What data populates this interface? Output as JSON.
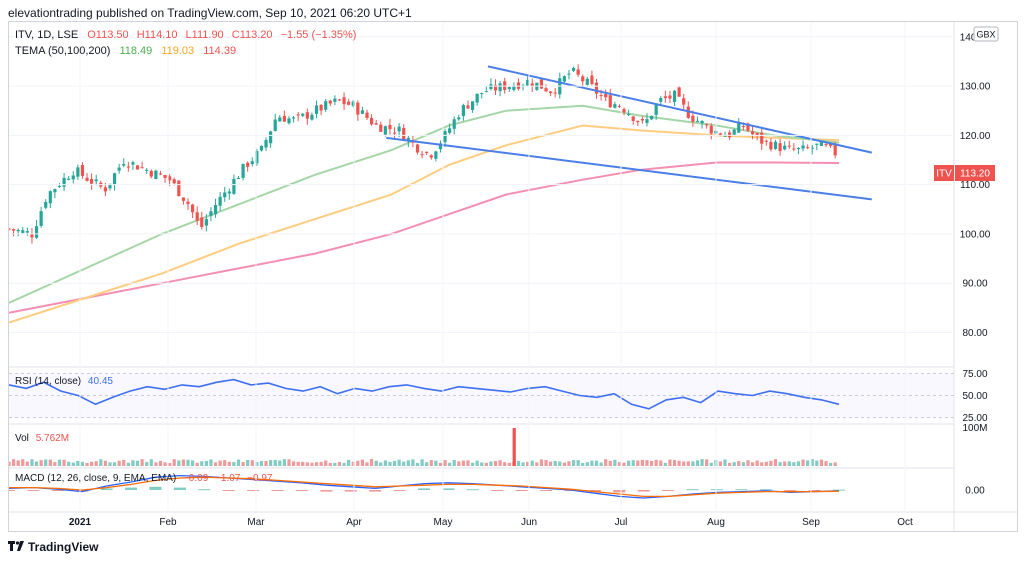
{
  "header": "elevationtrading published on TradingView.com, Sep 10, 2021 06:20 UTC+1",
  "footer": {
    "logo_text": "TradingView"
  },
  "legend": {
    "symbol_line": "ITV, 1D, LSE",
    "open": "O113.50",
    "high": "H114.10",
    "low": "L111.90",
    "close": "C113.20",
    "change": "−1.55 (−1.35%)",
    "tema_label": "TEMA (50,100,200)",
    "tema_values": [
      "118.49",
      "119.03",
      "114.39"
    ]
  },
  "currency": "GBX",
  "last_price_symbol": "ITV",
  "last_price": "113.20",
  "rsi_label": "RSI (14, close)",
  "rsi_value": "40.45",
  "vol_label": "Vol",
  "vol_value": "5.762M",
  "macd_label": "MACD (12, 26, close, 9, EMA, EMA)",
  "macd_values": [
    "−0.09",
    "−1.07",
    "−0.97"
  ],
  "colors": {
    "up": "#26a69a",
    "down": "#ef5350",
    "tema50": "#a5d6a7",
    "tema100": "#ffcc80",
    "tema200": "#f48fb1",
    "trend": "#4a7ee8",
    "rsi": "#3d6ff0",
    "macd": "#2962ff",
    "signal": "#ff6d00"
  },
  "chart_data": {
    "type": "candlestick",
    "price_axis": {
      "ticks": [
        "140.00",
        "130.00",
        "120.00",
        "110.00",
        "100.00",
        "90.00",
        "80.00"
      ],
      "ylim": [
        73,
        143
      ]
    },
    "rsi_axis": {
      "ticks": [
        "75.00",
        "50.00",
        "25.00"
      ]
    },
    "vol_axis": {
      "ticks": [
        "100M"
      ]
    },
    "macd_axis": {
      "ticks": [
        "0.00"
      ]
    },
    "x_labels": [
      "2021",
      "Feb",
      "Mar",
      "Apr",
      "May",
      "Jun",
      "Jul",
      "Aug",
      "Sep",
      "Oct"
    ],
    "close_series": [
      [
        0,
        101
      ],
      [
        6,
        100
      ],
      [
        10,
        108
      ],
      [
        17,
        113
      ],
      [
        25,
        109
      ],
      [
        30,
        115
      ],
      [
        36,
        113
      ],
      [
        42,
        111
      ],
      [
        47,
        106
      ],
      [
        50,
        101
      ],
      [
        54,
        106
      ],
      [
        58,
        110
      ],
      [
        62,
        114
      ],
      [
        66,
        117
      ],
      [
        70,
        124
      ],
      [
        75,
        123
      ],
      [
        80,
        125
      ],
      [
        86,
        127
      ],
      [
        90,
        126
      ],
      [
        96,
        122
      ],
      [
        102,
        121
      ],
      [
        106,
        118
      ],
      [
        110,
        116
      ],
      [
        114,
        120
      ],
      [
        118,
        125
      ],
      [
        124,
        129
      ],
      [
        130,
        130
      ],
      [
        136,
        131
      ],
      [
        142,
        129
      ],
      [
        147,
        133
      ],
      [
        152,
        130
      ],
      [
        156,
        127
      ],
      [
        160,
        126
      ],
      [
        166,
        122
      ],
      [
        170,
        127
      ],
      [
        174,
        128
      ],
      [
        178,
        124
      ],
      [
        184,
        121
      ],
      [
        188,
        120
      ],
      [
        192,
        122
      ],
      [
        196,
        119
      ],
      [
        200,
        118
      ],
      [
        204,
        117
      ],
      [
        208,
        117
      ],
      [
        212,
        118
      ],
      [
        217,
        116
      ]
    ],
    "trendlines": [
      {
        "from": [
          "2021-05-27",
          134
        ],
        "to": [
          "2021-09-21",
          116.5
        ]
      },
      {
        "from": [
          "2021-04-26",
          119.5
        ],
        "to": [
          "2021-09-21",
          107
        ]
      }
    ],
    "tema_series": {
      "50": [
        [
          0,
          86
        ],
        [
          20,
          93
        ],
        [
          40,
          100
        ],
        [
          60,
          106
        ],
        [
          80,
          112
        ],
        [
          100,
          117
        ],
        [
          115,
          122
        ],
        [
          130,
          125
        ],
        [
          150,
          126
        ],
        [
          165,
          124
        ],
        [
          185,
          122
        ],
        [
          200,
          120
        ],
        [
          217,
          118.5
        ]
      ],
      "100": [
        [
          0,
          82
        ],
        [
          20,
          87
        ],
        [
          40,
          92
        ],
        [
          60,
          98
        ],
        [
          80,
          103
        ],
        [
          100,
          108
        ],
        [
          115,
          114
        ],
        [
          130,
          118
        ],
        [
          150,
          122
        ],
        [
          165,
          121
        ],
        [
          185,
          120
        ],
        [
          200,
          119.5
        ],
        [
          217,
          119
        ]
      ],
      "200": [
        [
          0,
          84
        ],
        [
          20,
          87
        ],
        [
          40,
          90
        ],
        [
          60,
          93
        ],
        [
          80,
          96
        ],
        [
          100,
          100
        ],
        [
          115,
          104
        ],
        [
          130,
          108
        ],
        [
          150,
          111
        ],
        [
          165,
          113
        ],
        [
          185,
          114.5
        ],
        [
          200,
          114.5
        ],
        [
          217,
          114.4
        ]
      ]
    },
    "rsi_series": [
      62,
      58,
      65,
      55,
      50,
      40,
      48,
      55,
      60,
      57,
      62,
      60,
      65,
      68,
      62,
      64,
      58,
      55,
      60,
      52,
      58,
      55,
      60,
      62,
      58,
      55,
      60,
      58,
      56,
      54,
      58,
      60,
      55,
      50,
      48,
      52,
      40,
      35,
      45,
      48,
      42,
      55,
      52,
      50,
      55,
      52,
      48,
      45,
      40
    ],
    "volume_spike": {
      "date": "2021-06-04",
      "label": "large volume spike"
    },
    "macd_series": {
      "macd": [
        0.2,
        0.3,
        0.1,
        -0.2,
        0.5,
        1.0,
        1.6,
        1.8,
        1.7,
        1.5,
        1.3,
        1.1,
        0.9,
        0.6,
        0.4,
        0.2,
        0.5,
        0.8,
        0.9,
        0.8,
        0.6,
        0.4,
        0.2,
        0.0,
        -0.4,
        -0.8,
        -1.0,
        -0.8,
        -0.5,
        -0.3,
        -0.2,
        -0.1,
        -0.3,
        -0.2,
        -0.1
      ],
      "signal": [
        0.3,
        0.3,
        0.2,
        0.0,
        0.3,
        0.7,
        1.2,
        1.5,
        1.6,
        1.5,
        1.4,
        1.2,
        1.0,
        0.8,
        0.6,
        0.4,
        0.5,
        0.6,
        0.7,
        0.7,
        0.6,
        0.5,
        0.3,
        0.1,
        -0.2,
        -0.5,
        -0.8,
        -0.8,
        -0.6,
        -0.4,
        -0.3,
        -0.2,
        -0.2,
        -0.2,
        -0.15
      ]
    }
  }
}
